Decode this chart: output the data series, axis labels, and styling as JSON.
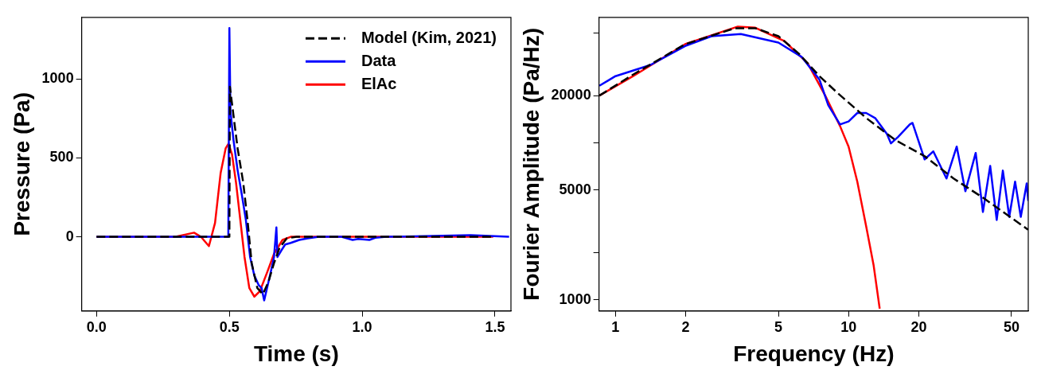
{
  "chart_data": [
    {
      "type": "line",
      "xlabel": "Time (s)",
      "ylabel": "Pressure (Pa)",
      "xlim": [
        -0.056,
        1.56
      ],
      "ylim": [
        -470,
        1390
      ],
      "xticks": [
        {
          "value": 0,
          "label": "0.0"
        },
        {
          "value": 0.5,
          "label": "0.5"
        },
        {
          "value": 1,
          "label": "1.0"
        },
        {
          "value": 1.5,
          "label": "1.5"
        }
      ],
      "yticks": [
        0,
        500,
        1000
      ],
      "grid": false,
      "legend": "top right",
      "marker": "none",
      "series": [
        {
          "name": "Model (Kim, 2021)",
          "color": "#000000",
          "line_style": "dashed",
          "x": [
            0,
            0.5,
            0.502,
            0.515,
            0.531,
            0.552,
            0.568,
            0.584,
            0.605,
            0.626,
            0.647,
            0.668,
            0.689,
            0.716,
            0.753,
            1.493
          ],
          "values": [
            0,
            0,
            950,
            775,
            560,
            345,
            108,
            -167,
            -324,
            -364,
            -285,
            -167,
            -69,
            -10,
            0,
            0
          ]
        },
        {
          "name": "Data",
          "color": "#0000ff",
          "line_style": "solid",
          "x": [
            0,
            0.496,
            0.5,
            0.504,
            0.515,
            0.531,
            0.547,
            0.562,
            0.578,
            0.594,
            0.61,
            0.621,
            0.631,
            0.642,
            0.658,
            0.668,
            0.677,
            0.681,
            0.695,
            0.71,
            0.731,
            0.763,
            0.795,
            0.837,
            0.922,
            0.964,
            0.985,
            1.027,
            1.049,
            1.091,
            1.302,
            1.408,
            1.553
          ],
          "values": [
            0,
            0,
            1322,
            796,
            619,
            422,
            265,
            108,
            -128,
            -246,
            -305,
            -324,
            -403,
            -324,
            -206,
            -128,
            59,
            -128,
            -88,
            -49,
            -39,
            -20,
            -10,
            0,
            0,
            -20,
            -14,
            -20,
            -6,
            0,
            6,
            10,
            0
          ]
        },
        {
          "name": "ElAc",
          "color": "#ff0000",
          "line_style": "solid",
          "x": [
            0,
            0.298,
            0.367,
            0.393,
            0.423,
            0.446,
            0.467,
            0.486,
            0.497,
            0.51,
            0.525,
            0.541,
            0.557,
            0.575,
            0.594,
            0.615,
            0.642,
            0.668,
            0.7,
            0.731,
            1.493
          ],
          "values": [
            0,
            0,
            26,
            0,
            -59,
            88,
            403,
            560,
            590,
            521,
            344,
            108,
            -128,
            -324,
            -379,
            -344,
            -226,
            -108,
            -20,
            0,
            0
          ]
        }
      ]
    },
    {
      "type": "line",
      "xlabel": "Frequency (Hz)",
      "ylabel": "Fourier Amplitude (Pa/Hz)",
      "log": "xy",
      "xlim": [
        0.85,
        59
      ],
      "ylim": [
        850,
        63000
      ],
      "xticks": [
        1,
        2,
        5,
        10,
        20,
        50
      ],
      "yticks": [
        1000,
        {
          "value": 2000,
          "label": null
        },
        5000,
        {
          "value": 10000,
          "label": null
        },
        20000,
        {
          "value": 50000,
          "label": null
        }
      ],
      "grid": false,
      "marker": "none",
      "series": [
        {
          "color": "#000000",
          "line_style": "dashed",
          "x": [
            0.853,
            1.19,
            1.99,
            3.25,
            3.98,
            5.0,
            6.13,
            7.5,
            8.9,
            11.9,
            15.9,
            21.2,
            28.2,
            37.7,
            58.9
          ],
          "values": [
            20000,
            27200,
            42500,
            53700,
            53700,
            47800,
            36900,
            26600,
            21000,
            14400,
            10400,
            8230,
            5930,
            4480,
            2800
          ]
        },
        {
          "color": "#0000ff",
          "line_style": "solid",
          "x": [
            0.853,
            1.0,
            1.41,
            1.99,
            2.58,
            3.45,
            5.0,
            6.3,
            7.5,
            8.18,
            9.19,
            10.0,
            10.9,
            11.9,
            13.0,
            14.6,
            15.2,
            16.3,
            18.3,
            18.8,
            21.2,
            23.1,
            26.3,
            29.1,
            31.7,
            35.1,
            37.7,
            40.5,
            43.2,
            45.9,
            48.9,
            51.8,
            54.8,
            58.1,
            59
          ],
          "values": [
            23100,
            26600,
            31300,
            41400,
            47800,
            49300,
            43500,
            35200,
            25300,
            17400,
            13100,
            13700,
            15500,
            15500,
            14400,
            11400,
            9930,
            10900,
            13100,
            13400,
            7850,
            8830,
            5930,
            9470,
            4920,
            8630,
            3630,
            7140,
            3230,
            6660,
            3380,
            5660,
            3380,
            5520,
            4270
          ]
        },
        {
          "color": "#ff0000",
          "line_style": "solid",
          "x": [
            0.853,
            1.19,
            1.99,
            3.35,
            3.98,
            5.31,
            6.68,
            7.94,
            9.19,
            10.0,
            10.9,
            11.9,
            12.8,
            13.6
          ],
          "values": [
            20000,
            26600,
            42500,
            55000,
            54100,
            44500,
            32100,
            20000,
            12800,
            9470,
            5660,
            2940,
            1670,
            880
          ]
        }
      ]
    }
  ]
}
